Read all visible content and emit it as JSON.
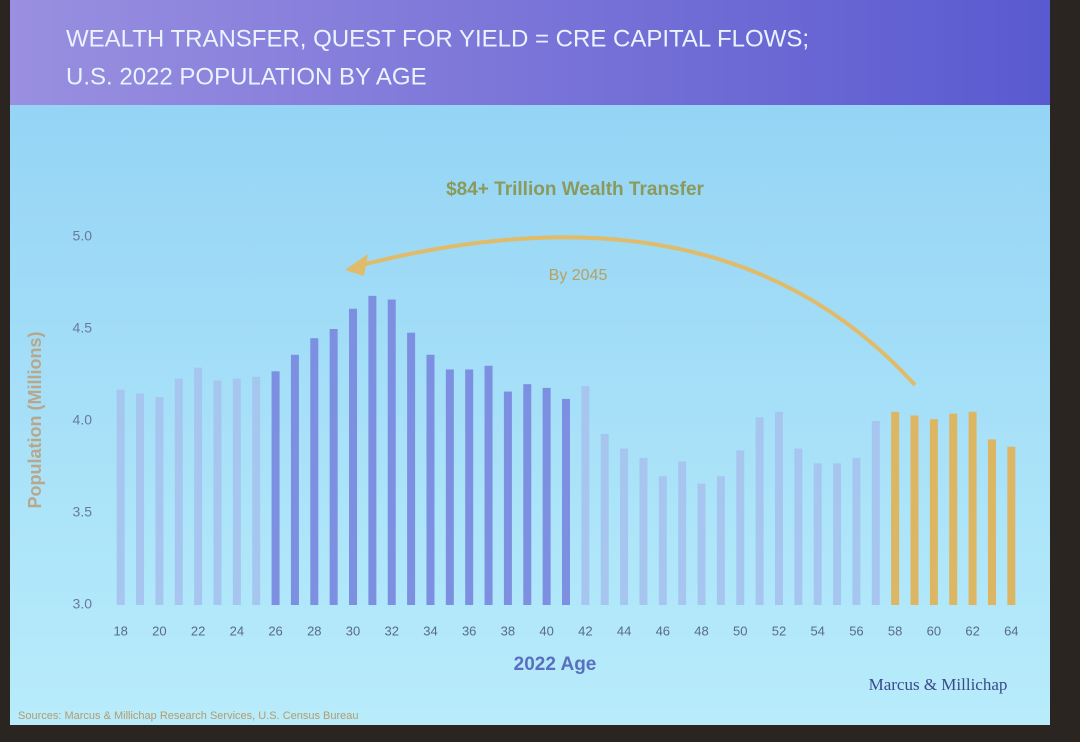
{
  "chart_data": {
    "type": "bar",
    "title": "WEALTH TRANSFER, QUEST FOR YIELD = CRE CAPITAL FLOWS;",
    "subtitle": "U.S. 2022 POPULATION BY AGE",
    "annotation": "$84+ Trillion Wealth Transfer",
    "arrow_label": "By 2045",
    "x_label": "2022 Age",
    "y_label": "Population (Millions)",
    "source": "Sources: Marcus & Millichap Research Services, U.S. Census Bureau",
    "logo": "Marcus & Millichap",
    "categories": [
      18,
      null,
      20,
      null,
      22,
      null,
      24,
      null,
      26,
      null,
      28,
      null,
      30,
      null,
      32,
      null,
      34,
      null,
      36,
      null,
      38,
      null,
      40,
      null,
      42,
      null,
      44,
      null,
      46,
      null,
      48,
      null,
      50,
      null,
      52,
      null,
      54,
      null,
      56,
      null,
      58,
      null,
      60,
      null,
      62,
      null,
      64
    ],
    "values": [
      4.17,
      4.15,
      4.13,
      4.23,
      4.29,
      4.22,
      4.23,
      4.24,
      4.27,
      4.36,
      4.45,
      4.5,
      4.61,
      4.68,
      4.66,
      4.48,
      4.36,
      4.28,
      4.28,
      4.3,
      4.16,
      4.2,
      4.18,
      4.12,
      4.19,
      3.93,
      3.85,
      3.8,
      3.7,
      3.78,
      3.66,
      3.7,
      3.84,
      4.02,
      4.05,
      3.85,
      3.77,
      3.77,
      3.8,
      4.0,
      4.05,
      4.03,
      4.01,
      4.04,
      4.05,
      3.9,
      3.86
    ],
    "colors": [
      "#a6c6f0",
      "#a6c6f0",
      "#a6c6f0",
      "#a6c6f0",
      "#a6c6f0",
      "#a6c6f0",
      "#a6c6f0",
      "#a6c6f0",
      "#7d8fe0",
      "#7d8fe0",
      "#7d8fe0",
      "#7d8fe0",
      "#7d8fe0",
      "#7d8fe0",
      "#7d8fe0",
      "#7d8fe0",
      "#7d8fe0",
      "#7d8fe0",
      "#7d8fe0",
      "#7d8fe0",
      "#7d8fe0",
      "#7d8fe0",
      "#7d8fe0",
      "#7d8fe0",
      "#a6c6f0",
      "#a6c6f0",
      "#a6c6f0",
      "#a6c6f0",
      "#a6c6f0",
      "#a6c6f0",
      "#a6c6f0",
      "#a6c6f0",
      "#a6c6f0",
      "#a6c6f0",
      "#a6c6f0",
      "#a6c6f0",
      "#a6c6f0",
      "#a6c6f0",
      "#a6c6f0",
      "#a6c6f0",
      "#ddb663",
      "#ddb663",
      "#ddb663",
      "#ddb663",
      "#ddb663",
      "#ddb663",
      "#ddb663"
    ],
    "ylim": [
      3.0,
      5.0
    ],
    "yticks": [
      {
        "value": 3,
        "label": "3.0"
      },
      3.5,
      {
        "value": 4,
        "label": "4.0"
      },
      4.5,
      {
        "value": 5,
        "label": "5.0"
      }
    ],
    "grid": false
  }
}
